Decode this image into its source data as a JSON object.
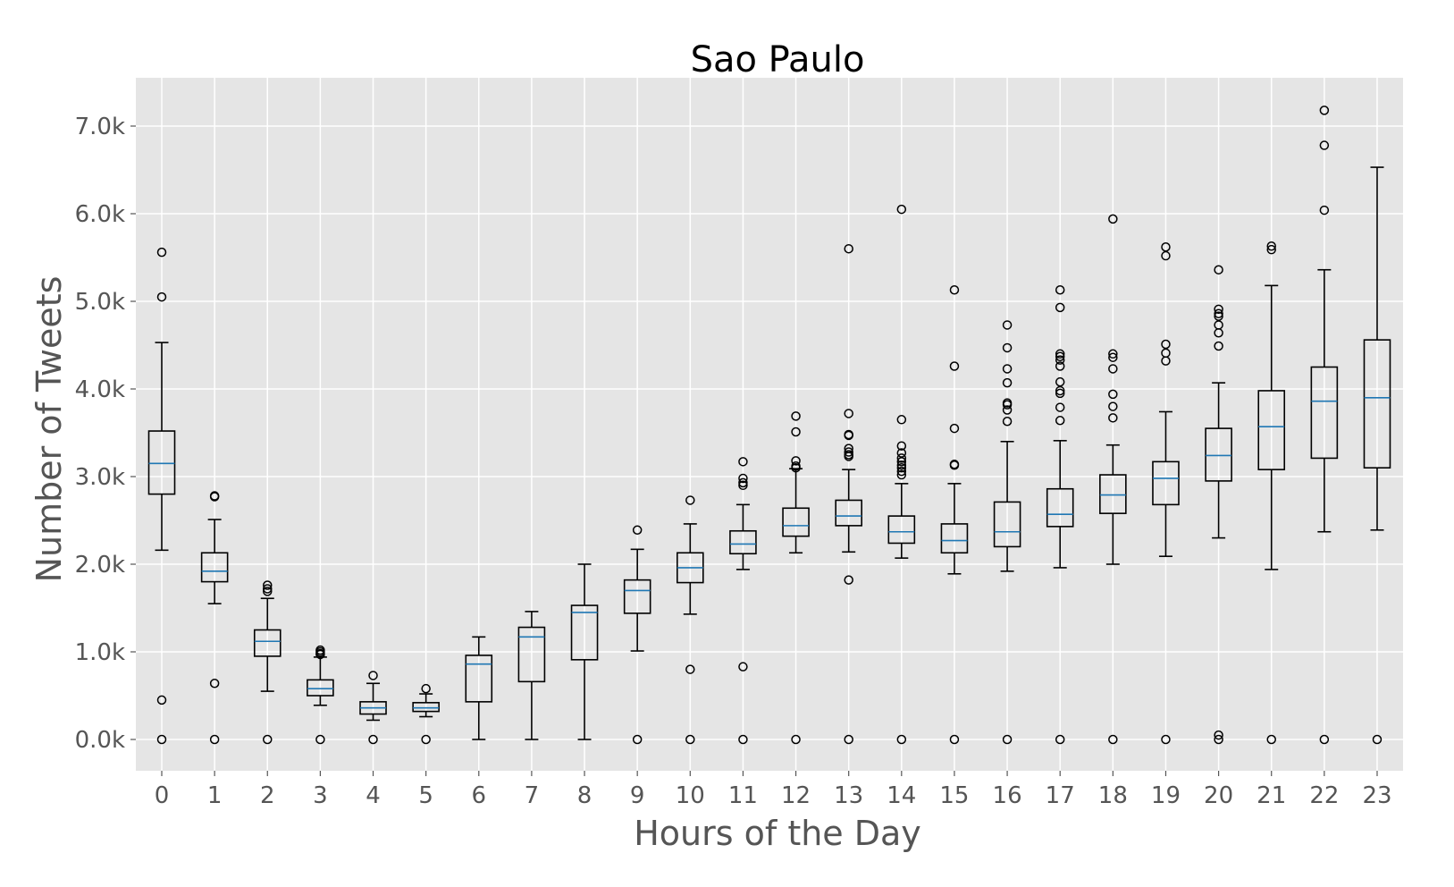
{
  "chart_data": {
    "type": "box",
    "title": "Sao Paulo",
    "xlabel": "Hours of the Day",
    "ylabel": "Number of Tweets",
    "ylim": [
      -0.35,
      7.5
    ],
    "yticks": [
      0,
      1,
      2,
      3,
      4,
      5,
      6,
      7
    ],
    "ytick_labels": [
      "0.0k",
      "1.0k",
      "2.0k",
      "3.0k",
      "4.0k",
      "5.0k",
      "6.0k",
      "7.0k"
    ],
    "categories": [
      "0",
      "1",
      "2",
      "3",
      "4",
      "5",
      "6",
      "7",
      "8",
      "9",
      "10",
      "11",
      "12",
      "13",
      "14",
      "15",
      "16",
      "17",
      "18",
      "19",
      "20",
      "21",
      "22",
      "23"
    ],
    "unit": "thousands of tweets",
    "grid": true,
    "colors": {
      "background": "#e5e5e5",
      "grid": "#ffffff",
      "box": "#000000",
      "median": "#1f77b4",
      "text": "#555555"
    },
    "boxes": [
      {
        "hour": "0",
        "whislo": 2.16,
        "q1": 2.8,
        "med": 3.15,
        "q3": 3.52,
        "whishi": 4.53,
        "fliers": [
          5.56,
          5.05,
          0.45,
          0.0
        ]
      },
      {
        "hour": "1",
        "whislo": 1.55,
        "q1": 1.8,
        "med": 1.92,
        "q3": 2.13,
        "whishi": 2.51,
        "fliers": [
          2.77,
          2.78,
          0.64,
          0.0
        ]
      },
      {
        "hour": "2",
        "whislo": 0.55,
        "q1": 0.95,
        "med": 1.12,
        "q3": 1.25,
        "whishi": 1.61,
        "fliers": [
          1.76,
          1.72,
          1.69,
          0.0
        ]
      },
      {
        "hour": "3",
        "whislo": 0.39,
        "q1": 0.5,
        "med": 0.58,
        "q3": 0.68,
        "whishi": 0.94,
        "fliers": [
          1.02,
          1.0,
          0.98,
          0.97,
          0.0
        ]
      },
      {
        "hour": "4",
        "whislo": 0.22,
        "q1": 0.29,
        "med": 0.36,
        "q3": 0.43,
        "whishi": 0.64,
        "fliers": [
          0.73,
          0.0
        ]
      },
      {
        "hour": "5",
        "whislo": 0.26,
        "q1": 0.32,
        "med": 0.36,
        "q3": 0.42,
        "whishi": 0.52,
        "fliers": [
          0.58,
          0.0
        ]
      },
      {
        "hour": "6",
        "whislo": 0.0,
        "q1": 0.43,
        "med": 0.86,
        "q3": 0.96,
        "whishi": 1.17,
        "fliers": []
      },
      {
        "hour": "7",
        "whislo": 0.0,
        "q1": 0.66,
        "med": 1.17,
        "q3": 1.28,
        "whishi": 1.46,
        "fliers": []
      },
      {
        "hour": "8",
        "whislo": 0.0,
        "q1": 0.91,
        "med": 1.45,
        "q3": 1.53,
        "whishi": 2.0,
        "fliers": []
      },
      {
        "hour": "9",
        "whislo": 1.01,
        "q1": 1.44,
        "med": 1.7,
        "q3": 1.82,
        "whishi": 2.17,
        "fliers": [
          2.39,
          0.0
        ]
      },
      {
        "hour": "10",
        "whislo": 1.43,
        "q1": 1.79,
        "med": 1.96,
        "q3": 2.13,
        "whishi": 2.46,
        "fliers": [
          2.73,
          0.8,
          0.0
        ]
      },
      {
        "hour": "11",
        "whislo": 1.94,
        "q1": 2.12,
        "med": 2.23,
        "q3": 2.38,
        "whishi": 2.68,
        "fliers": [
          3.17,
          2.98,
          2.93,
          2.9,
          0.83,
          0.0
        ]
      },
      {
        "hour": "12",
        "whislo": 2.13,
        "q1": 2.32,
        "med": 2.44,
        "q3": 2.64,
        "whishi": 3.09,
        "fliers": [
          3.69,
          3.51,
          3.18,
          3.12,
          3.1,
          0.0
        ]
      },
      {
        "hour": "13",
        "whislo": 2.14,
        "q1": 2.44,
        "med": 2.55,
        "q3": 2.73,
        "whishi": 3.08,
        "fliers": [
          5.6,
          3.72,
          3.48,
          3.47,
          3.32,
          3.28,
          3.25,
          3.23,
          1.82,
          0.0
        ]
      },
      {
        "hour": "14",
        "whislo": 2.07,
        "q1": 2.24,
        "med": 2.37,
        "q3": 2.55,
        "whishi": 2.92,
        "fliers": [
          6.05,
          3.65,
          3.35,
          3.27,
          3.21,
          3.17,
          3.13,
          3.1,
          3.06,
          3.02,
          0.0
        ]
      },
      {
        "hour": "15",
        "whislo": 1.89,
        "q1": 2.13,
        "med": 2.27,
        "q3": 2.46,
        "whishi": 2.92,
        "fliers": [
          5.13,
          4.26,
          3.55,
          3.14,
          3.13,
          0.0
        ]
      },
      {
        "hour": "16",
        "whislo": 1.92,
        "q1": 2.2,
        "med": 2.37,
        "q3": 2.71,
        "whishi": 3.4,
        "fliers": [
          4.73,
          4.47,
          4.23,
          4.07,
          3.84,
          3.82,
          3.76,
          3.63,
          0.0
        ]
      },
      {
        "hour": "17",
        "whislo": 1.96,
        "q1": 2.43,
        "med": 2.57,
        "q3": 2.86,
        "whishi": 3.41,
        "fliers": [
          5.13,
          4.93,
          4.4,
          4.37,
          4.33,
          4.26,
          4.08,
          3.98,
          3.95,
          3.79,
          3.64,
          0.0
        ]
      },
      {
        "hour": "18",
        "whislo": 2.0,
        "q1": 2.58,
        "med": 2.79,
        "q3": 3.02,
        "whishi": 3.36,
        "fliers": [
          5.94,
          4.4,
          4.36,
          4.23,
          3.94,
          3.8,
          3.67,
          0.0
        ]
      },
      {
        "hour": "19",
        "whislo": 2.09,
        "q1": 2.68,
        "med": 2.98,
        "q3": 3.17,
        "whishi": 3.74,
        "fliers": [
          5.62,
          5.52,
          4.51,
          4.41,
          4.32,
          0.0
        ]
      },
      {
        "hour": "20",
        "whislo": 2.3,
        "q1": 2.95,
        "med": 3.24,
        "q3": 3.55,
        "whishi": 4.07,
        "fliers": [
          5.36,
          4.91,
          4.86,
          4.83,
          4.73,
          4.64,
          4.49,
          0.05,
          0.0
        ]
      },
      {
        "hour": "21",
        "whislo": 1.94,
        "q1": 3.08,
        "med": 3.57,
        "q3": 3.98,
        "whishi": 5.18,
        "fliers": [
          5.63,
          5.59,
          0.0
        ]
      },
      {
        "hour": "22",
        "whislo": 2.37,
        "q1": 3.21,
        "med": 3.86,
        "q3": 4.25,
        "whishi": 5.36,
        "fliers": [
          7.18,
          6.78,
          6.04,
          0.0
        ]
      },
      {
        "hour": "23",
        "whislo": 2.39,
        "q1": 3.1,
        "med": 3.9,
        "q3": 4.56,
        "whishi": 6.53,
        "fliers": [
          0.0
        ]
      }
    ]
  }
}
